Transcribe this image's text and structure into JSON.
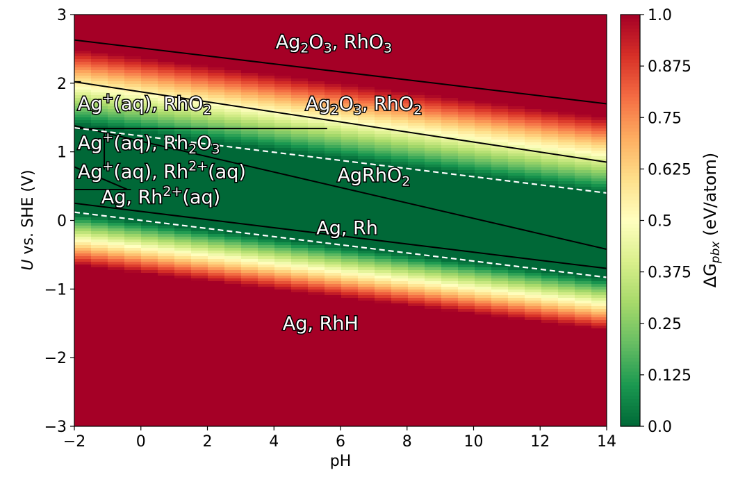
{
  "chart_data": {
    "type": "heatmap",
    "title": "",
    "xlabel": "pH",
    "ylabel_main": "U",
    "ylabel_rest": " vs. SHE (V)",
    "xlim": [
      -2,
      14
    ],
    "ylim": [
      -3,
      3
    ],
    "x_ticks": [
      "−2",
      "0",
      "2",
      "4",
      "6",
      "8",
      "10",
      "12",
      "14"
    ],
    "x_tick_values": [
      -2,
      0,
      2,
      4,
      6,
      8,
      10,
      12,
      14
    ],
    "y_ticks": [
      "−3",
      "−2",
      "−1",
      "0",
      "1",
      "2",
      "3"
    ],
    "y_tick_values": [
      -3,
      -2,
      -1,
      0,
      1,
      2,
      3
    ],
    "colorbar": {
      "label_prefix": "ΔG",
      "label_sub": "pbx",
      "label_suffix": " (eV/atom)",
      "range": [
        0.0,
        1.0
      ],
      "ticks": [
        "0.0",
        "0.125",
        "0.25",
        "0.375",
        "0.5",
        "0.625",
        "0.75",
        "0.875",
        "1.0"
      ],
      "tick_values": [
        0.0,
        0.125,
        0.25,
        0.375,
        0.5,
        0.625,
        0.75,
        0.875,
        1.0
      ],
      "colors": [
        "#006837",
        "#1a9850",
        "#66bd63",
        "#a6d96a",
        "#d9ef8b",
        "#ffffbf",
        "#fee08b",
        "#fdae61",
        "#f46d43",
        "#d73027",
        "#a50026"
      ]
    },
    "stability_window": {
      "description_units": "U at pH=-2 and pH=14 for the zero-ΔG band edges",
      "lower_edge": [
        [
          -2,
          0.1
        ],
        [
          14,
          -0.85
        ]
      ],
      "upper_edge": [
        [
          -2,
          1.4
        ],
        [
          14,
          0.4
        ]
      ]
    },
    "boundaries_solid": [
      [
        [
          -2,
          2.63
        ],
        [
          14,
          1.7
        ]
      ],
      [
        [
          -2,
          2.02
        ],
        [
          14,
          0.85
        ]
      ],
      [
        [
          -2,
          1.38
        ],
        [
          14,
          -0.42
        ]
      ],
      [
        [
          -2,
          0.25
        ],
        [
          14,
          -0.7
        ]
      ],
      [
        [
          -2,
          1.34
        ],
        [
          5.6,
          1.34
        ]
      ],
      [
        [
          -1.1,
          1.34
        ],
        [
          -1.1,
          0.74
        ]
      ],
      [
        [
          -2,
          0.45
        ],
        [
          -0.3,
          0.45
        ]
      ],
      [
        [
          -2,
          0.78
        ],
        [
          -0.4,
          0.45
        ]
      ],
      [
        [
          -2,
          2.02
        ],
        [
          -1.8,
          2.02
        ]
      ]
    ],
    "boundaries_dashed": [
      [
        [
          -2,
          1.35
        ],
        [
          14,
          0.4
        ]
      ],
      [
        [
          -2,
          0.12
        ],
        [
          14,
          -0.83
        ]
      ]
    ],
    "regions": [
      {
        "x": 5.8,
        "y": 2.6,
        "parts": [
          [
            "Ag"
          ],
          [
            "2",
            "sub"
          ],
          [
            "O"
          ],
          [
            "3",
            "sub"
          ],
          [
            ", RhO"
          ],
          [
            "3",
            "sub"
          ]
        ]
      },
      {
        "x": -1.9,
        "y": 1.7,
        "anchor": "start",
        "parts": [
          [
            "Ag"
          ],
          [
            "+",
            "sup"
          ],
          [
            "(aq), RhO"
          ],
          [
            "2",
            "sub"
          ]
        ]
      },
      {
        "x": 6.7,
        "y": 1.7,
        "parts": [
          [
            "Ag"
          ],
          [
            "2",
            "sub"
          ],
          [
            "O"
          ],
          [
            "3",
            "sub"
          ],
          [
            ", RhO"
          ],
          [
            "2",
            "sub"
          ]
        ]
      },
      {
        "x": -1.9,
        "y": 1.13,
        "anchor": "start",
        "parts": [
          [
            "Ag"
          ],
          [
            "+",
            "sup"
          ],
          [
            "(aq), Rh"
          ],
          [
            "2",
            "sub"
          ],
          [
            "O"
          ],
          [
            "3",
            "sub"
          ]
        ]
      },
      {
        "x": -1.9,
        "y": 0.71,
        "anchor": "start",
        "parts": [
          [
            "Ag"
          ],
          [
            "+",
            "sup"
          ],
          [
            "(aq), Rh"
          ],
          [
            "2+",
            "sup"
          ],
          [
            "(aq)"
          ]
        ]
      },
      {
        "x": 0.6,
        "y": 0.34,
        "parts": [
          [
            "Ag, Rh"
          ],
          [
            "2+",
            "sup"
          ],
          [
            "(aq)"
          ]
        ]
      },
      {
        "x": 7.0,
        "y": 0.66,
        "parts": [
          [
            "AgRhO"
          ],
          [
            "2",
            "sub"
          ]
        ]
      },
      {
        "x": 6.2,
        "y": -0.11,
        "parts": [
          [
            "Ag, Rh"
          ]
        ]
      },
      {
        "x": 5.4,
        "y": -1.5,
        "parts": [
          [
            "Ag, RhH"
          ]
        ]
      }
    ]
  }
}
